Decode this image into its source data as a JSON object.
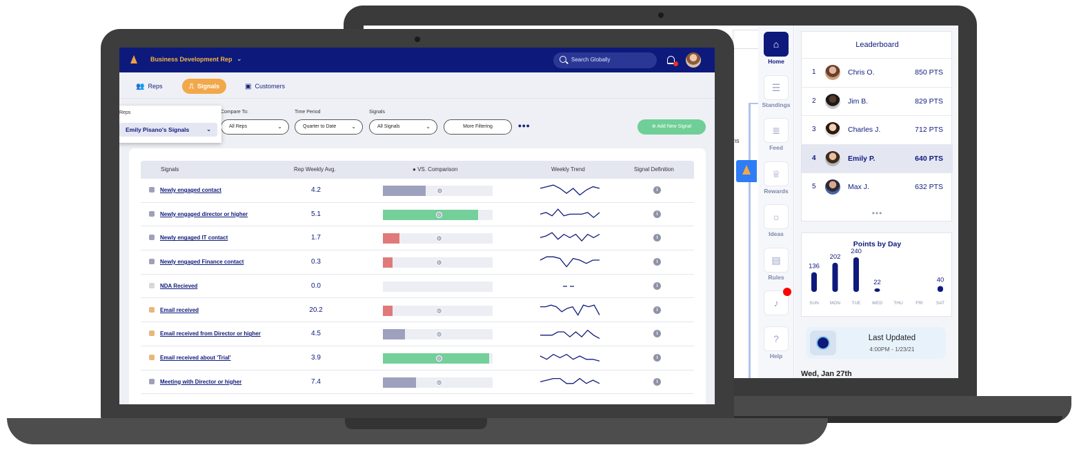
{
  "front": {
    "app_title": "Business Development Rep",
    "search_placeholder": "Search Globally",
    "nav": [
      {
        "label": "Reps"
      },
      {
        "label": "Signals"
      },
      {
        "label": "Customers"
      }
    ],
    "filters": {
      "reps_label": "Reps",
      "reps_value": "Emily Pisano's Signals",
      "compare_label": "Compare To:",
      "compare_value": "All Reps",
      "period_label": "Time Period",
      "period_value": "Quarter to Date",
      "signals_label": "Signals",
      "signals_value": "All Signals",
      "more_filtering": "More Filtering",
      "add_signal": "Add New Signal"
    },
    "table": {
      "headers": [
        "Signals",
        "Rep Weekly Avg.",
        "VS. Comparison",
        "Weekly Trend",
        "Signal Definition"
      ],
      "rows": [
        {
          "name": "Newly engaged contact",
          "avg": "4.2",
          "icon": "person-icon",
          "bar": 0.39,
          "bar_color": "#9ea1bd",
          "marker": "6",
          "marker_pos": 0.52,
          "trend": [
            5,
            6,
            7,
            5,
            2,
            5,
            1,
            4,
            6,
            5
          ]
        },
        {
          "name": "Newly engaged director or higher",
          "avg": "5.1",
          "icon": "person-icon",
          "bar": 0.87,
          "bar_color": "#74d09a",
          "marker": "3",
          "marker_pos": 0.51,
          "trend": [
            4,
            5,
            3,
            7,
            3,
            4,
            4,
            4,
            5,
            2,
            5
          ]
        },
        {
          "name": "Newly engaged IT contact",
          "avg": "1.7",
          "icon": "person-icon",
          "bar": 0.15,
          "bar_color": "#e07a7a",
          "marker": "5",
          "marker_pos": 0.51,
          "trend": [
            4,
            5,
            7,
            3,
            6,
            4,
            6,
            2,
            6,
            4,
            6
          ]
        },
        {
          "name": "Newly engaged Finance contact",
          "avg": "0.3",
          "icon": "person-icon",
          "bar": 0.09,
          "bar_color": "#e07a7a",
          "marker": "5",
          "marker_pos": 0.51,
          "trend": [
            5,
            7,
            7,
            6,
            1,
            6,
            5,
            3,
            5,
            5
          ]
        },
        {
          "name": "NDA Recieved",
          "avg": "0.0",
          "icon": "document-icon",
          "bar": 0,
          "bar_color": "#e07a7a",
          "marker": "",
          "marker_pos": -1,
          "trend": []
        },
        {
          "name": "Email received",
          "avg": "20.2",
          "icon": "envelope-icon",
          "bar": 0.09,
          "bar_color": "#e07a7a",
          "marker": "50",
          "marker_pos": 0.51,
          "trend": [
            6,
            6,
            7,
            6,
            3,
            5,
            6,
            1,
            7,
            6,
            7,
            1
          ]
        },
        {
          "name": "Email received from Director or higher",
          "avg": "4.5",
          "icon": "envelope-icon",
          "bar": 0.2,
          "bar_color": "#9ea1bd",
          "marker": "10",
          "marker_pos": 0.51,
          "trend": [
            3,
            3,
            3,
            5,
            5,
            2,
            5,
            2,
            6,
            3,
            1
          ]
        },
        {
          "name": "Email received about 'Trial'",
          "avg": "3.9",
          "icon": "envelope-icon",
          "bar": 0.97,
          "bar_color": "#74d09a",
          "marker": "1",
          "marker_pos": 0.51,
          "trend": [
            5,
            3,
            6,
            4,
            6,
            3,
            5,
            3,
            3,
            2
          ]
        },
        {
          "name": "Meeting with Director or higher",
          "avg": "7.4",
          "icon": "calendar-icon",
          "bar": 0.3,
          "bar_color": "#9ea1bd",
          "marker": "12",
          "marker_pos": 0.51,
          "trend": [
            4,
            5,
            6,
            6,
            3,
            3,
            6,
            3,
            5,
            3
          ]
        }
      ]
    }
  },
  "back": {
    "cut_text": "ns",
    "sidebar": [
      {
        "label": "Home",
        "icon": "home-icon"
      },
      {
        "label": "Standings",
        "icon": "standings-icon"
      },
      {
        "label": "Feed",
        "icon": "feed-icon"
      },
      {
        "label": "Rewards",
        "icon": "trophy-icon"
      },
      {
        "label": "Ideas",
        "icon": "lightbulb-icon"
      },
      {
        "label": "Rules",
        "icon": "book-icon"
      },
      {
        "label": "",
        "icon": "bell-icon"
      },
      {
        "label": "Help",
        "icon": "help-icon"
      }
    ],
    "leaderboard": {
      "title": "Leaderboard",
      "rows": [
        {
          "rank": "1",
          "name": "Chris O.",
          "pts": "850 PTS"
        },
        {
          "rank": "2",
          "name": "Jim B.",
          "pts": "829 PTS"
        },
        {
          "rank": "3",
          "name": "Charles J.",
          "pts": "712 PTS"
        },
        {
          "rank": "4",
          "name": "Emily P.",
          "pts": "640 PTS"
        },
        {
          "rank": "5",
          "name": "Max J.",
          "pts": "632 PTS"
        }
      ],
      "more": "•••"
    },
    "points_by_day": {
      "title": "Points by Day",
      "days": [
        "SUN",
        "MON",
        "TUE",
        "WED",
        "THU",
        "FRI",
        "SAT"
      ],
      "values": [
        136,
        202,
        240,
        22,
        null,
        null,
        40
      ],
      "labels": [
        "136",
        "202",
        "240",
        "22",
        "",
        "",
        "40"
      ]
    },
    "last_updated": {
      "title": "Last Updated",
      "time": "4:00PM - 1/23/21"
    },
    "date_heading": "Wed, Jan 27th"
  }
}
